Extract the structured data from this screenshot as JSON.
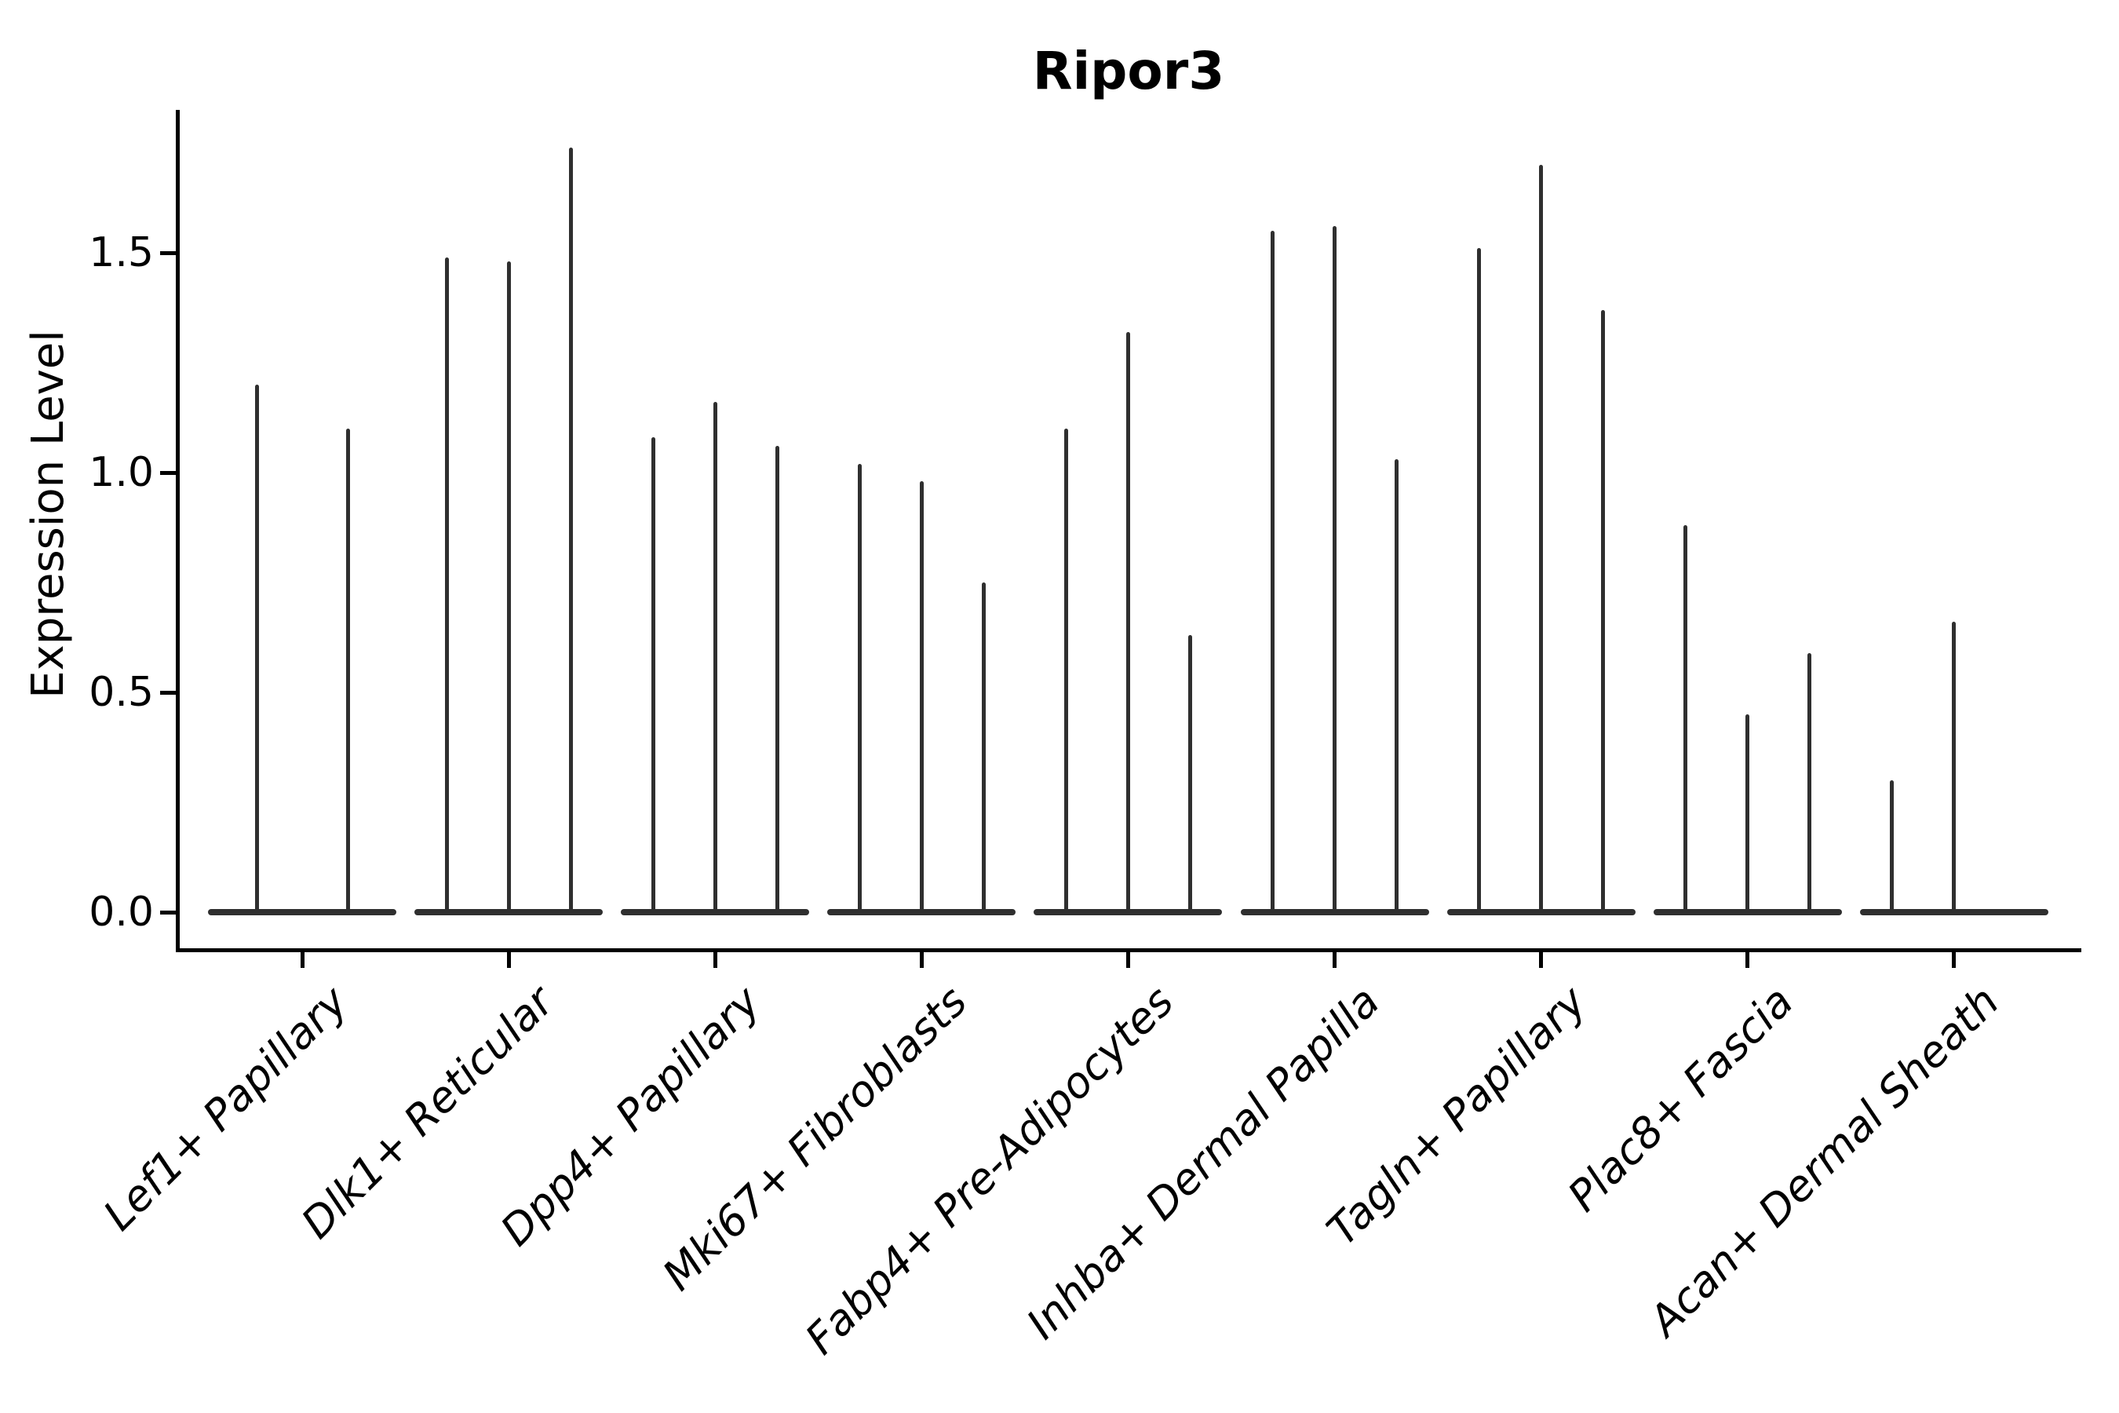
{
  "title": "Ripor3",
  "ylabel": "Expression Level",
  "colors": {
    "violin": "#2f2f2f",
    "axis": "#000000",
    "text": "#000000",
    "background": "#ffffff"
  },
  "chart_data": {
    "type": "violin",
    "title": "Ripor3",
    "xlabel": "",
    "ylabel": "Expression Level",
    "ylim": [
      0,
      1.82
    ],
    "yticks": [
      0.0,
      0.5,
      1.0,
      1.5
    ],
    "ytick_labels": [
      "0.0",
      "0.5",
      "1.0",
      "1.5"
    ],
    "grid": false,
    "legend": false,
    "categories": [
      "Lef1+ Papillary",
      "Dlk1+ Reticular",
      "Dpp4+ Papillary",
      "Mki67+ Fibroblasts",
      "Fabp4+ Pre-Adipocytes",
      "Inhba+ Dermal Papilla",
      "Tagln+ Papillary",
      "Plac8+ Fascia",
      "Acan+ Dermal Sheath"
    ],
    "groups": [
      {
        "category": "Lef1+ Papillary",
        "violins": [
          {
            "peak": 1.2,
            "offset": -58
          },
          {
            "peak": 1.1,
            "offset": 58
          }
        ]
      },
      {
        "category": "Dlk1+ Reticular",
        "violins": [
          {
            "peak": 1.49,
            "offset": -79
          },
          {
            "peak": 1.48,
            "offset": 0
          },
          {
            "peak": 1.74,
            "offset": 79
          }
        ]
      },
      {
        "category": "Dpp4+ Papillary",
        "violins": [
          {
            "peak": 1.08,
            "offset": -79
          },
          {
            "peak": 1.16,
            "offset": 0
          },
          {
            "peak": 1.06,
            "offset": 79
          }
        ]
      },
      {
        "category": "Mki67+ Fibroblasts",
        "violins": [
          {
            "peak": 1.02,
            "offset": -79
          },
          {
            "peak": 0.98,
            "offset": 0
          },
          {
            "peak": 0.75,
            "offset": 79
          }
        ]
      },
      {
        "category": "Fabp4+ Pre-Adipocytes",
        "violins": [
          {
            "peak": 1.1,
            "offset": -79
          },
          {
            "peak": 1.32,
            "offset": 0
          },
          {
            "peak": 0.63,
            "offset": 79
          }
        ]
      },
      {
        "category": "Inhba+ Dermal Papilla",
        "violins": [
          {
            "peak": 1.55,
            "offset": -79
          },
          {
            "peak": 1.56,
            "offset": 0
          },
          {
            "peak": 1.03,
            "offset": 79
          }
        ]
      },
      {
        "category": "Tagln+ Papillary",
        "violins": [
          {
            "peak": 1.51,
            "offset": -79
          },
          {
            "peak": 1.7,
            "offset": 0
          },
          {
            "peak": 1.37,
            "offset": 79
          }
        ]
      },
      {
        "category": "Plac8+ Fascia",
        "violins": [
          {
            "peak": 0.88,
            "offset": -79
          },
          {
            "peak": 0.45,
            "offset": 0
          },
          {
            "peak": 0.59,
            "offset": 79
          }
        ]
      },
      {
        "category": "Acan+ Dermal Sheath",
        "violins": [
          {
            "peak": 0.3,
            "offset": -79
          },
          {
            "peak": 0.66,
            "offset": 0
          }
        ]
      }
    ]
  }
}
